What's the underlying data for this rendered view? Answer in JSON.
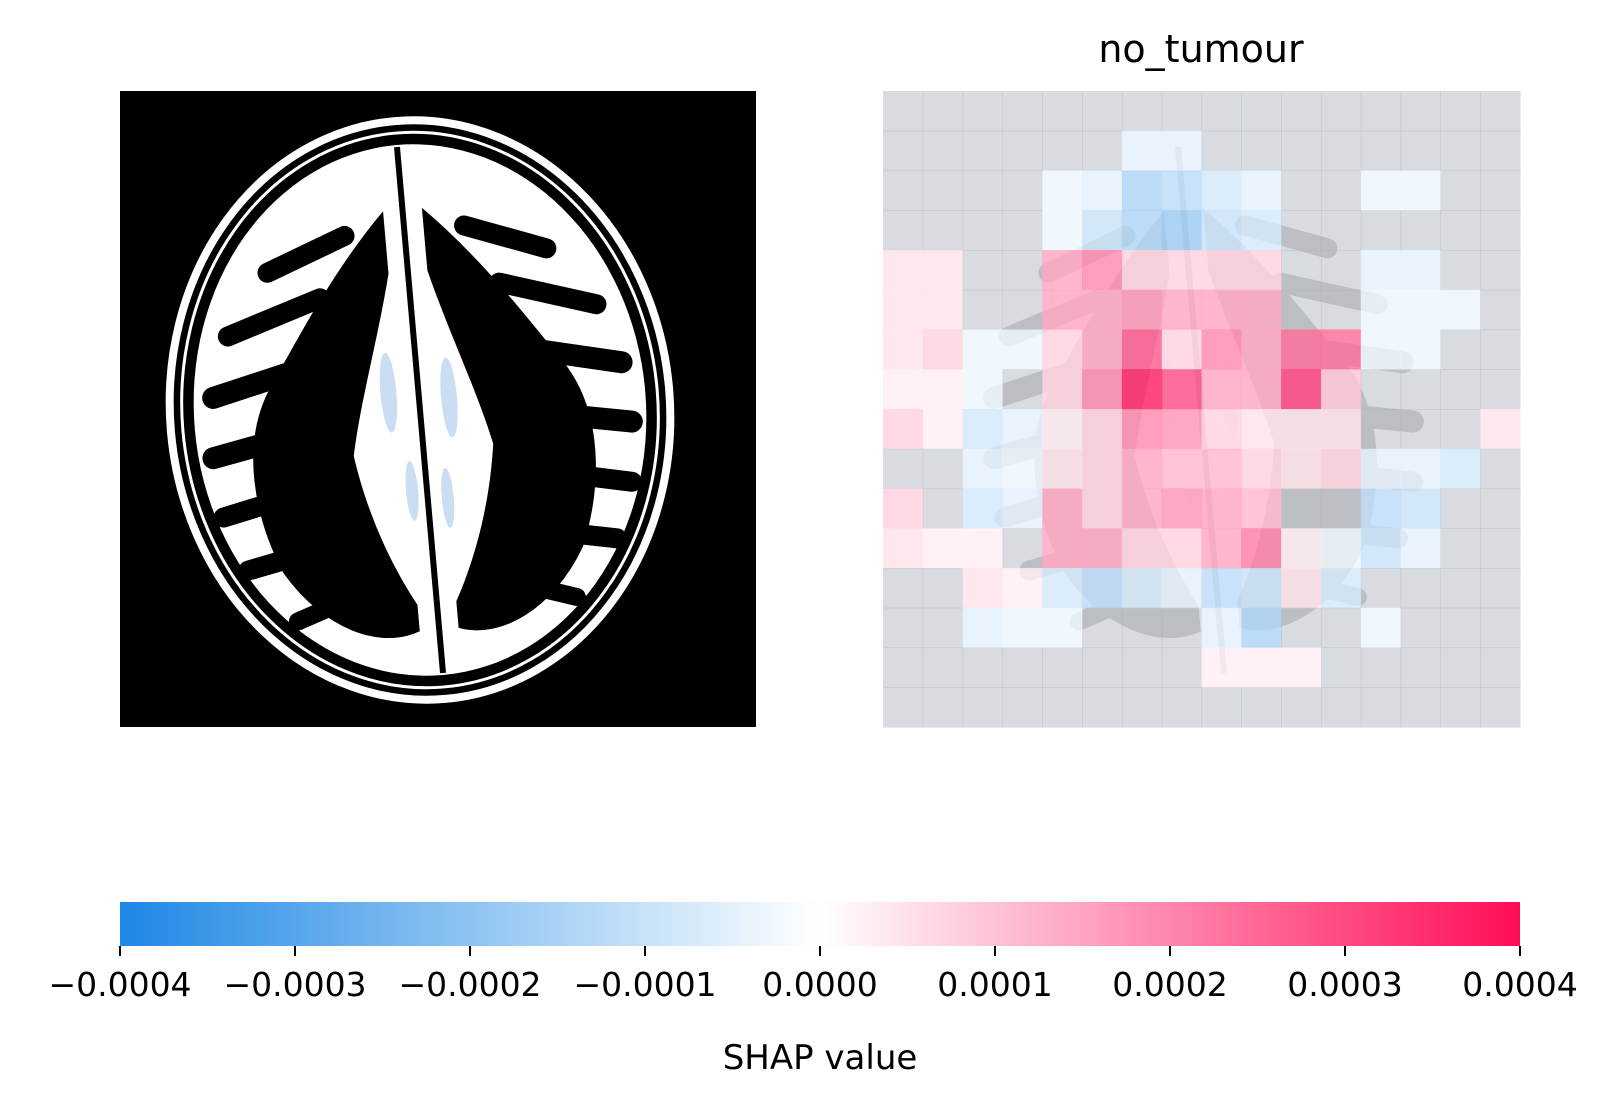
{
  "panels": [
    {
      "title": "",
      "kind": "input-image",
      "image": "brain-mri-axial"
    },
    {
      "title": "no_tumour",
      "kind": "shap-overlay",
      "image": "brain-mri-axial"
    }
  ],
  "colorbar": {
    "label": "SHAP value",
    "ticks": [
      "−0.0004",
      "−0.0003",
      "−0.0002",
      "−0.0001",
      "0.0000",
      "0.0001",
      "0.0002",
      "0.0003",
      "0.0004"
    ],
    "range": [
      -0.0004,
      0.0004
    ],
    "color_negative": "#1e88e5",
    "color_zero": "#ffffff",
    "color_positive": "#ff0d57"
  },
  "chart_data": {
    "type": "heatmap",
    "title": "no_tumour",
    "colorbar_label": "SHAP value",
    "vmin": -0.0004,
    "vmax": 0.0004,
    "grid": false,
    "rows": 16,
    "cols": 16,
    "values": [
      [
        0,
        0,
        0,
        0,
        0,
        0,
        0,
        0,
        0,
        0,
        0,
        0,
        0,
        0,
        0,
        0
      ],
      [
        0,
        0,
        0,
        0,
        0,
        0,
        -5e-05,
        -5e-05,
        0,
        0,
        0,
        0,
        0,
        0,
        0,
        0
      ],
      [
        0,
        0,
        0,
        0,
        -3e-05,
        -5e-05,
        -0.00015,
        -0.00012,
        -8e-05,
        -5e-05,
        0,
        0,
        -3e-05,
        -3e-05,
        0,
        0
      ],
      [
        0,
        0,
        0,
        0,
        -3e-05,
        -0.0001,
        -0.00015,
        -0.00018,
        -0.0001,
        -8e-05,
        0,
        0,
        0,
        0,
        0,
        0
      ],
      [
        5e-05,
        5e-05,
        0,
        0,
        0.00015,
        0.0002,
        8e-05,
        8e-05,
        8e-05,
        8e-05,
        0,
        0,
        -5e-05,
        -5e-05,
        0,
        0
      ],
      [
        5e-05,
        5e-05,
        0,
        0,
        0.00015,
        0.00015,
        0.00018,
        0.00015,
        0.00015,
        0.00015,
        0,
        0,
        -3e-05,
        -3e-05,
        -3e-05,
        0
      ],
      [
        5e-05,
        8e-05,
        -3e-05,
        -3e-05,
        8e-05,
        0.00015,
        0.00028,
        8e-05,
        0.0002,
        0.00015,
        0.00025,
        0.00025,
        -3e-05,
        -3e-05,
        0,
        0
      ],
      [
        3e-05,
        3e-05,
        -3e-05,
        0,
        8e-05,
        0.0002,
        0.00038,
        0.0003,
        0.00015,
        0.00015,
        0.00032,
        0.0001,
        0,
        0,
        0,
        0
      ],
      [
        8e-05,
        3e-05,
        -8e-05,
        -5e-05,
        3e-05,
        8e-05,
        0.0002,
        0.00018,
        8e-05,
        5e-05,
        5e-05,
        5e-05,
        0,
        0,
        0,
        5e-05
      ],
      [
        0,
        0,
        -5e-05,
        -3e-05,
        5e-05,
        8e-05,
        0.00015,
        0.00012,
        0.00012,
        8e-05,
        5e-05,
        8e-05,
        -5e-05,
        -5e-05,
        -8e-05,
        0
      ],
      [
        8e-05,
        0,
        -8e-05,
        -5e-05,
        0.00015,
        8e-05,
        0.00015,
        0.00018,
        0.00015,
        0.00012,
        0,
        0,
        -0.00012,
        -0.0001,
        0,
        0
      ],
      [
        5e-05,
        3e-05,
        3e-05,
        0,
        0.00015,
        0.00015,
        8e-05,
        8e-05,
        0.00015,
        0.00022,
        3e-05,
        -3e-05,
        -0.0001,
        -5e-05,
        0,
        0
      ],
      [
        0,
        0,
        5e-05,
        3e-05,
        -8e-05,
        -0.00012,
        -8e-05,
        -5e-05,
        -0.00012,
        -0.0001,
        5e-05,
        -8e-05,
        0,
        0,
        0,
        0
      ],
      [
        0,
        0,
        -5e-05,
        -3e-05,
        -3e-05,
        0,
        0,
        0,
        -5e-05,
        -0.00015,
        0,
        0,
        -3e-05,
        0,
        0,
        0
      ],
      [
        0,
        0,
        0,
        0,
        0,
        0,
        0,
        0,
        3e-05,
        3e-05,
        3e-05,
        0,
        0,
        0,
        0,
        0
      ],
      [
        0,
        0,
        0,
        0,
        0,
        0,
        0,
        0,
        0,
        0,
        0,
        0,
        0,
        0,
        0,
        0
      ]
    ]
  }
}
